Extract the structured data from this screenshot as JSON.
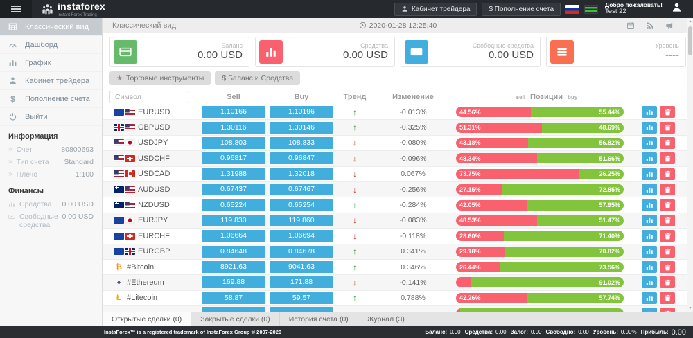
{
  "header": {
    "logo_text": "instaforex",
    "logo_subtext": "Instant Forex Trading",
    "trader_cabinet_label": "Кабинет трейдера",
    "deposit_label": "$ Пополнение счета",
    "welcome_text": "Добро пожаловать!",
    "username": "Test 22"
  },
  "sidebar": {
    "menu": [
      {
        "label": "Классический вид",
        "icon": "grid",
        "active": true
      },
      {
        "label": "Дашборд",
        "icon": "gauge",
        "active": false
      },
      {
        "label": "График",
        "icon": "chart",
        "active": false
      },
      {
        "label": "Кабинет трейдера",
        "icon": "person",
        "active": false
      },
      {
        "label": "Пополнение счета",
        "icon": "dollar",
        "active": false
      },
      {
        "label": "Выйти",
        "icon": "power",
        "active": false
      }
    ],
    "info_title": "Информация",
    "info": [
      {
        "label": "Счет",
        "value": "80800693"
      },
      {
        "label": "Тип счета",
        "value": "Standard"
      },
      {
        "label": "Плечо",
        "value": "1:100"
      }
    ],
    "finance_title": "Финансы",
    "finance": [
      {
        "label": "Средства",
        "value": "0.00 USD",
        "icon": "chart"
      },
      {
        "label": "Свободные средства",
        "value": "0.00 USD",
        "icon": "money"
      }
    ]
  },
  "subheader": {
    "title": "Классический вид",
    "datetime": "2020-01-28 12:25:40"
  },
  "cards": [
    {
      "label": "Баланс",
      "value": "0.00 USD",
      "color": "#66bb6a",
      "icon": "credit-card"
    },
    {
      "label": "Средства",
      "value": "0.00 USD",
      "color": "#f9616e",
      "icon": "bar-chart"
    },
    {
      "label": "Свободные средства",
      "value": "0.00 USD",
      "color": "#41aede",
      "icon": "money"
    },
    {
      "label": "Уровень",
      "value": "----",
      "color": "#fa6e51",
      "icon": "list"
    }
  ],
  "toolbar": {
    "instruments_label": "Торговые инструменты",
    "balance_label": "$ Баланс и Средства"
  },
  "table": {
    "symbol_placeholder": "Символ",
    "headers": {
      "sell": "Sell",
      "buy": "Buy",
      "trend": "Тренд",
      "change": "Изменение",
      "positions": "Позиции",
      "pos_sell": "sell",
      "pos_buy": "buy"
    },
    "rows": [
      {
        "symbol": "EURUSD",
        "icon": "eu-us",
        "sell": "1.10166",
        "buy": "1.10196",
        "trend": "up",
        "change": "-0.013%",
        "sell_pct": 44.56,
        "buy_pct": 55.44,
        "sell_label": "44.56%",
        "buy_label": "55.44%"
      },
      {
        "symbol": "GBPUSD",
        "icon": "gb-us",
        "sell": "1.30116",
        "buy": "1.30146",
        "trend": "up",
        "change": "-0.325%",
        "sell_pct": 51.31,
        "buy_pct": 48.69,
        "sell_label": "51.31%",
        "buy_label": "48.69%"
      },
      {
        "symbol": "USDJPY",
        "icon": "us-jp",
        "sell": "108.803",
        "buy": "108.833",
        "trend": "down",
        "change": "-0.080%",
        "sell_pct": 43.18,
        "buy_pct": 56.82,
        "sell_label": "43.18%",
        "buy_label": "56.82%"
      },
      {
        "symbol": "USDCHF",
        "icon": "us-ch",
        "sell": "0.96817",
        "buy": "0.96847",
        "trend": "down",
        "change": "-0.096%",
        "sell_pct": 48.34,
        "buy_pct": 51.66,
        "sell_label": "48.34%",
        "buy_label": "51.66%"
      },
      {
        "symbol": "USDCAD",
        "icon": "us-ca",
        "sell": "1.31988",
        "buy": "1.32018",
        "trend": "down",
        "change": "0.067%",
        "sell_pct": 73.75,
        "buy_pct": 26.25,
        "sell_label": "73.75%",
        "buy_label": "26.25%"
      },
      {
        "symbol": "AUDUSD",
        "icon": "au-us",
        "sell": "0.67437",
        "buy": "0.67467",
        "trend": "down",
        "change": "-0.256%",
        "sell_pct": 27.15,
        "buy_pct": 72.85,
        "sell_label": "27.15%",
        "buy_label": "72.85%"
      },
      {
        "symbol": "NZDUSD",
        "icon": "nz-us",
        "sell": "0.65224",
        "buy": "0.65254",
        "trend": "up",
        "change": "-0.284%",
        "sell_pct": 42.05,
        "buy_pct": 57.95,
        "sell_label": "42.05%",
        "buy_label": "57.95%"
      },
      {
        "symbol": "EURJPY",
        "icon": "eu-jp",
        "sell": "119.830",
        "buy": "119.860",
        "trend": "down",
        "change": "-0.083%",
        "sell_pct": 48.53,
        "buy_pct": 51.47,
        "sell_label": "48.53%",
        "buy_label": "51.47%"
      },
      {
        "symbol": "EURCHF",
        "icon": "eu-ch",
        "sell": "1.06664",
        "buy": "1.06694",
        "trend": "down",
        "change": "-0.118%",
        "sell_pct": 28.6,
        "buy_pct": 71.4,
        "sell_label": "28.60%",
        "buy_label": "71.40%"
      },
      {
        "symbol": "EURGBP",
        "icon": "eu-gb",
        "sell": "0.84648",
        "buy": "0.84678",
        "trend": "up",
        "change": "0.341%",
        "sell_pct": 29.18,
        "buy_pct": 70.82,
        "sell_label": "29.18%",
        "buy_label": "70.82%"
      },
      {
        "symbol": "#Bitcoin",
        "icon": "btc",
        "sell": "8921.63",
        "buy": "9041.63",
        "trend": "up",
        "change": "0.346%",
        "sell_pct": 26.44,
        "buy_pct": 73.56,
        "sell_label": "26.44%",
        "buy_label": "73.56%"
      },
      {
        "symbol": "#Ethereum",
        "icon": "eth",
        "sell": "169.88",
        "buy": "171.88",
        "trend": "down",
        "change": "-0.141%",
        "sell_pct": 8.98,
        "buy_pct": 91.02,
        "sell_label": "",
        "buy_label": "91.02%"
      },
      {
        "symbol": "#Litecoin",
        "icon": "ltc",
        "sell": "58.87",
        "buy": "59.57",
        "trend": "up",
        "change": "0.788%",
        "sell_pct": 42.26,
        "buy_pct": 57.74,
        "sell_label": "42.26%",
        "buy_label": "57.74%"
      },
      {
        "symbol": "",
        "icon": "partial",
        "sell": "",
        "buy": "",
        "trend": "",
        "change": "",
        "sell_pct": 2.5,
        "buy_pct": 97.5,
        "sell_label": "",
        "buy_label": ""
      }
    ]
  },
  "tabs": [
    {
      "label": "Открытые сделки (0)",
      "active": true
    },
    {
      "label": "Закрытые сделки (0)",
      "active": false
    },
    {
      "label": "История счета (0)",
      "active": false
    },
    {
      "label": "Журнал (3)",
      "active": false
    }
  ],
  "footer": {
    "copyright": "InstaForex™ is a registered trademark of InstaForex Group © 2007-2020",
    "stats": [
      {
        "label": "Баланс:",
        "value": "0.00"
      },
      {
        "label": "Средства:",
        "value": "0.00"
      },
      {
        "label": "Залог:",
        "value": "0.00"
      },
      {
        "label": "Свободно:",
        "value": "0.00"
      },
      {
        "label": "Уровень:",
        "value": "0.00%"
      },
      {
        "label": "Прибыль:",
        "value": "0.00"
      }
    ]
  },
  "colors": {
    "accent_blue": "#41aede",
    "sell_red": "#f9616e",
    "buy_green": "#82c43c"
  }
}
